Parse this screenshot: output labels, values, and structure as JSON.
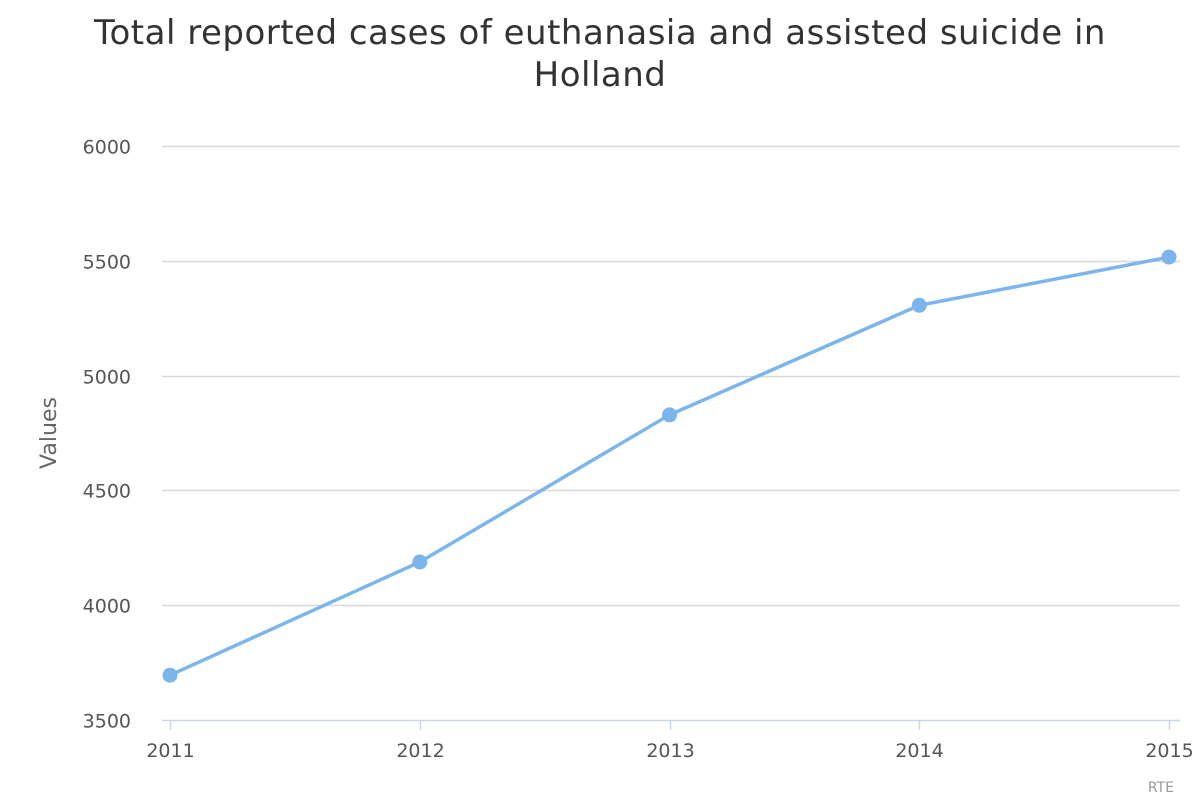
{
  "chart_data": {
    "type": "line",
    "title": "Total reported cases of euthanasia and assisted suicide in Holland",
    "ylabel": "Values",
    "xlabel": "",
    "categories": [
      "2011",
      "2012",
      "2013",
      "2014",
      "2015"
    ],
    "series": [
      {
        "values": [
          3695,
          4188,
          4829,
          5306,
          5516
        ],
        "color": "#7cb5ec"
      }
    ],
    "ylim": [
      3500,
      6000
    ],
    "yticks": [
      3500,
      4000,
      4500,
      5000,
      5500,
      6000
    ],
    "grid": true,
    "legend": "none",
    "credits": "RTE"
  }
}
